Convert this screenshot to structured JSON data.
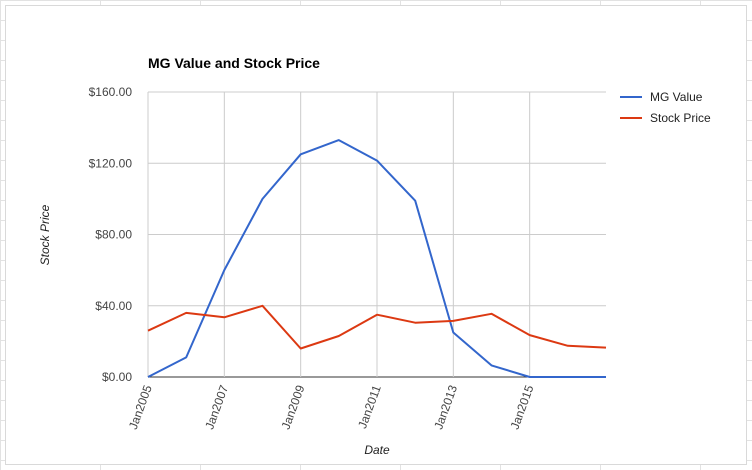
{
  "chart_data": {
    "type": "line",
    "title": "MG Value and Stock Price",
    "xlabel": "Date",
    "ylabel": "Stock Price",
    "ylim": [
      0,
      160
    ],
    "yticks": [
      "$0.00",
      "$40.00",
      "$80.00",
      "$120.00",
      "$160.00"
    ],
    "ytick_values": [
      0,
      40,
      80,
      120,
      160
    ],
    "x": [
      2005,
      2006,
      2007,
      2008,
      2009,
      2010,
      2011,
      2012,
      2013,
      2014,
      2015,
      2016,
      2017
    ],
    "xlim": [
      2005,
      2017
    ],
    "xticks": [
      "Jan2005",
      "Jan2007",
      "Jan2009",
      "Jan2011",
      "Jan2013",
      "Jan2015"
    ],
    "xtick_values": [
      2005,
      2007,
      2009,
      2011,
      2013,
      2015
    ],
    "grid": true,
    "legend_position": "right",
    "series": [
      {
        "name": "MG Value",
        "color": "#3366cc",
        "values": [
          0,
          11,
          60,
          100,
          125,
          133,
          121.5,
          99,
          25,
          6.5,
          0,
          0,
          0
        ]
      },
      {
        "name": "Stock Price",
        "color": "#dc3912",
        "values": [
          26,
          36,
          33.5,
          40,
          16,
          23,
          35,
          30.5,
          31.5,
          35.5,
          23.5,
          17.5,
          16.5
        ]
      }
    ]
  }
}
